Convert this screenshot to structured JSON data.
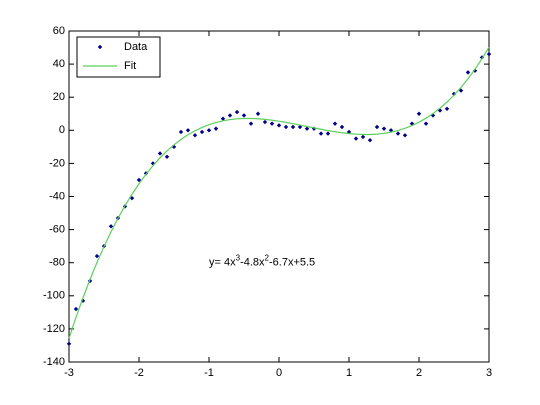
{
  "chart_data": {
    "type": "scatter",
    "x": [
      -3,
      -2.9,
      -2.8,
      -2.7,
      -2.6,
      -2.5,
      -2.4,
      -2.3,
      -2.2,
      -2.1,
      -2,
      -1.9,
      -1.8,
      -1.7,
      -1.6,
      -1.5,
      -1.4,
      -1.3,
      -1.2,
      -1.1,
      -1,
      -0.9,
      -0.8,
      -0.7,
      -0.6,
      -0.5,
      -0.4,
      -0.3,
      -0.2,
      -0.1,
      0,
      0.1,
      0.2,
      0.3,
      0.4,
      0.5,
      0.6,
      0.7,
      0.8,
      0.9,
      1,
      1.1,
      1.2,
      1.3,
      1.4,
      1.5,
      1.6,
      1.7,
      1.8,
      1.9,
      2,
      2.1,
      2.2,
      2.3,
      2.4,
      2.5,
      2.6,
      2.7,
      2.8,
      2.9,
      3
    ],
    "series": [
      {
        "name": "Data",
        "color": "#00008b",
        "kind": "markers",
        "values": [
          -129,
          -108,
          -103,
          -91,
          -76,
          -70,
          -58,
          -53,
          -46,
          -41,
          -30,
          -26,
          -20,
          -14,
          -16,
          -10,
          -1,
          0,
          -3,
          -1,
          0,
          1,
          7,
          9,
          11,
          9,
          4,
          10,
          5,
          4,
          3,
          2,
          2,
          2,
          1,
          1,
          -2,
          -2,
          4,
          2,
          -1,
          -5,
          -4,
          -6,
          2,
          1,
          0,
          -2,
          -3,
          4,
          10,
          4,
          9,
          12,
          13,
          22,
          24,
          35,
          36,
          44,
          46
        ]
      },
      {
        "name": "Fit",
        "color": "#5ccf5c",
        "kind": "line",
        "values": [
          -125.6,
          -112.99,
          -101.18,
          -90.13,
          -79.83,
          -70.25,
          -61.36,
          -53.15,
          -45.58,
          -38.64,
          -32.3,
          -26.53,
          -21.32,
          -16.63,
          -12.45,
          -8.75,
          -5.5,
          -2.69,
          -0.28,
          1.74,
          3.4,
          4.73,
          5.74,
          6.47,
          6.93,
          7.15,
          7.16,
          6.97,
          6.62,
          6.12,
          5.5,
          4.79,
          4,
          3.17,
          2.31,
          1.45,
          0.62,
          -0.17,
          -0.88,
          -1.5,
          -2,
          -2.35,
          -2.54,
          -2.53,
          -2.31,
          -1.85,
          -1.12,
          -0.11,
          1.22,
          2.88,
          4.9,
          7.31,
          10.12,
          13.37,
          17.07,
          21.25,
          25.94,
          31.15,
          36.92,
          43.26,
          50.2
        ]
      }
    ],
    "annotation": [
      "y= 4x",
      "3",
      "-4.8x",
      "2",
      "-6.7x+5.5"
    ],
    "annotation_at": [
      -1,
      -80
    ],
    "xlim": [
      -3,
      3
    ],
    "xticks": [
      -3,
      -2,
      -1,
      0,
      1,
      2,
      3
    ],
    "ylim": [
      -140,
      60
    ],
    "yticks": [
      -140,
      -120,
      -100,
      -80,
      -60,
      -40,
      -20,
      0,
      20,
      40,
      60
    ],
    "grid": false,
    "legend": "upper left"
  }
}
